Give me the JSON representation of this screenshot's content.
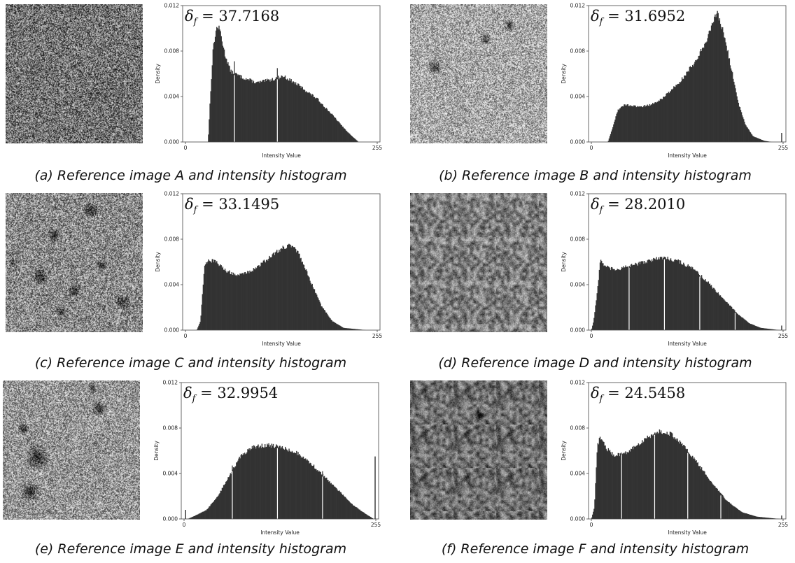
{
  "chart_data": [
    {
      "panel": "a",
      "type": "bar",
      "delta_value": "37.7168",
      "caption": "(a) Reference image A and intensity histogram",
      "texture": {
        "mean": 0.45,
        "contrast": 0.95,
        "blobs": []
      },
      "xlabel": "Intensity Value",
      "ylabel": "Density",
      "xlim": [
        0,
        255
      ],
      "ylim": [
        0,
        0.012
      ],
      "xticks": [
        "0",
        "255"
      ],
      "yticks": [
        "0.000",
        "0.004",
        "0.008",
        "0.012"
      ],
      "support": [
        30,
        230
      ],
      "curve": [
        [
          30,
          0.0
        ],
        [
          33,
          0.004
        ],
        [
          37,
          0.0085
        ],
        [
          42,
          0.0102
        ],
        [
          46,
          0.0098
        ],
        [
          52,
          0.0078
        ],
        [
          60,
          0.0062
        ],
        [
          75,
          0.0057
        ],
        [
          95,
          0.0052
        ],
        [
          115,
          0.0055
        ],
        [
          130,
          0.0058
        ],
        [
          150,
          0.005
        ],
        [
          175,
          0.0038
        ],
        [
          195,
          0.0024
        ],
        [
          215,
          0.0009
        ],
        [
          230,
          0.0
        ]
      ],
      "spikes": [
        [
          65,
          0.0071
        ],
        [
          122,
          0.0065
        ]
      ]
    },
    {
      "panel": "b",
      "type": "bar",
      "delta_value": "31.6952",
      "caption": "(b) Reference image B and intensity histogram",
      "texture": {
        "mean": 0.68,
        "contrast": 0.85,
        "blobs": [
          [
            0.18,
            0.45,
            0.06
          ],
          [
            0.55,
            0.25,
            0.05
          ],
          [
            0.72,
            0.15,
            0.05
          ]
        ]
      },
      "xlabel": "Intensity Value",
      "ylabel": "Density",
      "xlim": [
        0,
        255
      ],
      "ylim": [
        0,
        0.012
      ],
      "xticks": [
        "0",
        "255"
      ],
      "yticks": [
        "0.000",
        "0.004",
        "0.008",
        "0.012"
      ],
      "support": [
        22,
        240
      ],
      "curve": [
        [
          22,
          0.0
        ],
        [
          28,
          0.0012
        ],
        [
          35,
          0.0028
        ],
        [
          45,
          0.0033
        ],
        [
          60,
          0.0031
        ],
        [
          75,
          0.0032
        ],
        [
          90,
          0.0036
        ],
        [
          105,
          0.0045
        ],
        [
          120,
          0.0055
        ],
        [
          135,
          0.0068
        ],
        [
          150,
          0.0085
        ],
        [
          160,
          0.0102
        ],
        [
          167,
          0.0113
        ],
        [
          175,
          0.0098
        ],
        [
          185,
          0.0068
        ],
        [
          195,
          0.0035
        ],
        [
          205,
          0.0015
        ],
        [
          215,
          0.0005
        ],
        [
          230,
          0.0001
        ],
        [
          240,
          0.0
        ]
      ],
      "spikes": [
        [
          253,
          0.0008
        ]
      ]
    },
    {
      "panel": "c",
      "type": "bar",
      "delta_value": "33.1495",
      "caption": "(c) Reference image C and intensity histogram",
      "texture": {
        "mean": 0.55,
        "contrast": 0.9,
        "blobs": [
          [
            0.62,
            0.12,
            0.06
          ],
          [
            0.35,
            0.3,
            0.05
          ],
          [
            0.25,
            0.6,
            0.06
          ],
          [
            0.5,
            0.7,
            0.05
          ],
          [
            0.7,
            0.52,
            0.04
          ],
          [
            0.85,
            0.78,
            0.06
          ],
          [
            0.4,
            0.85,
            0.04
          ],
          [
            0.05,
            0.5,
            0.03
          ]
        ]
      },
      "xlabel": "Intensity Value",
      "ylabel": "Density",
      "xlim": [
        0,
        255
      ],
      "ylim": [
        0,
        0.012
      ],
      "xticks": [
        "0",
        "255"
      ],
      "yticks": [
        "0.000",
        "0.004",
        "0.008",
        "0.012"
      ],
      "support": [
        15,
        240
      ],
      "curve": [
        [
          15,
          0.0
        ],
        [
          20,
          0.0008
        ],
        [
          25,
          0.0055
        ],
        [
          30,
          0.0062
        ],
        [
          40,
          0.006
        ],
        [
          55,
          0.0052
        ],
        [
          70,
          0.0048
        ],
        [
          90,
          0.0053
        ],
        [
          110,
          0.0063
        ],
        [
          125,
          0.0071
        ],
        [
          138,
          0.0075
        ],
        [
          150,
          0.0068
        ],
        [
          165,
          0.0045
        ],
        [
          180,
          0.0022
        ],
        [
          195,
          0.0008
        ],
        [
          210,
          0.0002
        ],
        [
          240,
          0.0
        ]
      ],
      "spikes": []
    },
    {
      "panel": "d",
      "type": "bar",
      "delta_value": "28.2010",
      "caption": "(d) Reference image D and intensity histogram",
      "texture": {
        "mean": 0.5,
        "contrast": 0.55,
        "blobs": []
      },
      "xlabel": "Intensity Value",
      "ylabel": "Density",
      "xlim": [
        0,
        255
      ],
      "ylim": [
        0,
        0.012
      ],
      "xticks": [
        "0",
        "255"
      ],
      "yticks": [
        "0.000",
        "0.004",
        "0.008",
        "0.012"
      ],
      "support": [
        0,
        250
      ],
      "curve": [
        [
          0,
          0.0
        ],
        [
          3,
          0.0008
        ],
        [
          8,
          0.0035
        ],
        [
          12,
          0.0062
        ],
        [
          18,
          0.0056
        ],
        [
          30,
          0.0053
        ],
        [
          50,
          0.0056
        ],
        [
          70,
          0.006
        ],
        [
          95,
          0.0064
        ],
        [
          115,
          0.0061
        ],
        [
          135,
          0.0054
        ],
        [
          155,
          0.0042
        ],
        [
          175,
          0.0028
        ],
        [
          195,
          0.0014
        ],
        [
          210,
          0.0006
        ],
        [
          225,
          0.0002
        ],
        [
          250,
          0.0
        ]
      ],
      "spikes": [
        [
          50,
          0.0054
        ],
        [
          97,
          0.0064
        ],
        [
          144,
          0.0048
        ],
        [
          191,
          0.0015
        ],
        [
          253,
          0.0004
        ]
      ]
    },
    {
      "panel": "e",
      "type": "bar",
      "delta_value": "32.9954",
      "caption": "(e) Reference image E and intensity histogram",
      "texture": {
        "mean": 0.6,
        "contrast": 0.85,
        "blobs": [
          [
            0.25,
            0.55,
            0.1
          ],
          [
            0.2,
            0.8,
            0.08
          ],
          [
            0.7,
            0.2,
            0.06
          ],
          [
            0.65,
            0.05,
            0.04
          ],
          [
            0.15,
            0.35,
            0.05
          ]
        ]
      },
      "xlabel": "Intensity Value",
      "ylabel": "Density",
      "xlim": [
        0,
        255
      ],
      "ylim": [
        0,
        0.012
      ],
      "xticks": [
        "0",
        "255"
      ],
      "yticks": [
        "0.000",
        "0.004",
        "0.008",
        "0.012"
      ],
      "support": [
        5,
        252
      ],
      "curve": [
        [
          5,
          0.0
        ],
        [
          15,
          0.0003
        ],
        [
          30,
          0.0008
        ],
        [
          45,
          0.002
        ],
        [
          60,
          0.0038
        ],
        [
          75,
          0.0055
        ],
        [
          90,
          0.0063
        ],
        [
          110,
          0.0065
        ],
        [
          130,
          0.0063
        ],
        [
          150,
          0.0058
        ],
        [
          170,
          0.0048
        ],
        [
          190,
          0.0035
        ],
        [
          210,
          0.0022
        ],
        [
          225,
          0.0012
        ],
        [
          240,
          0.0005
        ],
        [
          252,
          0.0
        ]
      ],
      "spikes": [
        [
          2,
          0.0008
        ],
        [
          64,
          0.0047
        ],
        [
          124,
          0.0064
        ],
        [
          184,
          0.0042
        ],
        [
          254,
          0.0055
        ]
      ]
    },
    {
      "panel": "f",
      "type": "bar",
      "delta_value": "24.5458",
      "caption": "(f) Reference image F and intensity histogram",
      "texture": {
        "mean": 0.42,
        "contrast": 0.5,
        "blobs": [
          [
            0.5,
            0.25,
            0.04
          ]
        ]
      },
      "xlabel": "Intensity Value",
      "ylabel": "Density",
      "xlim": [
        0,
        255
      ],
      "ylim": [
        0,
        0.012
      ],
      "xticks": [
        "0",
        "255"
      ],
      "yticks": [
        "0.000",
        "0.004",
        "0.008",
        "0.012"
      ],
      "support": [
        0,
        250
      ],
      "curve": [
        [
          0,
          0.0
        ],
        [
          4,
          0.001
        ],
        [
          8,
          0.0065
        ],
        [
          12,
          0.0072
        ],
        [
          20,
          0.0062
        ],
        [
          30,
          0.0056
        ],
        [
          45,
          0.0058
        ],
        [
          60,
          0.0064
        ],
        [
          75,
          0.0072
        ],
        [
          90,
          0.0077
        ],
        [
          105,
          0.0075
        ],
        [
          120,
          0.0066
        ],
        [
          140,
          0.005
        ],
        [
          160,
          0.0032
        ],
        [
          180,
          0.0016
        ],
        [
          200,
          0.0006
        ],
        [
          220,
          0.0002
        ],
        [
          250,
          0.0
        ]
      ],
      "spikes": [
        [
          40,
          0.0056
        ],
        [
          84,
          0.0076
        ],
        [
          128,
          0.0058
        ],
        [
          172,
          0.0022
        ],
        [
          253,
          0.0003
        ]
      ]
    }
  ]
}
